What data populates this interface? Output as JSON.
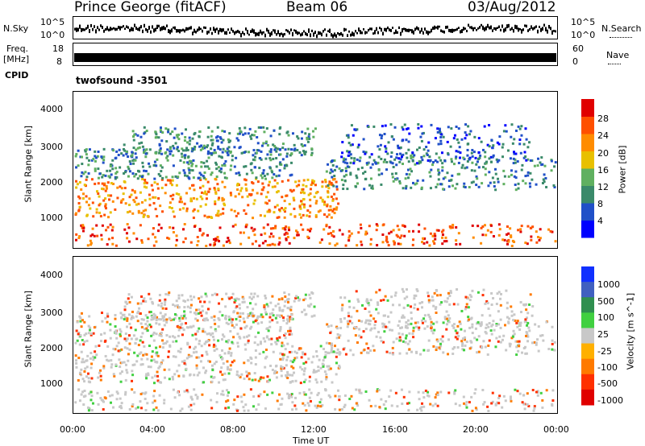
{
  "header": {
    "site": "Prince George (fitACF)",
    "beam": "Beam 06",
    "date": "03/Aug/2012"
  },
  "side_labels": {
    "nsky": "N.Sky",
    "nsearch": "N.Search",
    "freq_line1": "Freq.",
    "freq_line2": "[MHz]",
    "nave": "Nave",
    "cpid": "CPID",
    "cpid_value": "twofsound  -3501"
  },
  "noise_axis": {
    "left_top": "10^5",
    "left_bottom": "10^0",
    "right_top": "10^5",
    "right_bottom": "10^0"
  },
  "freq_axis": {
    "left_top": "18",
    "left_bottom": "8",
    "right_top": "60",
    "right_bottom": "0"
  },
  "colors": {
    "power": [
      "#0000ff",
      "#2050c8",
      "#3a8a6a",
      "#60b060",
      "#e8c000",
      "#ff8c00",
      "#ff5000",
      "#e00000"
    ],
    "velocity": [
      "#1030ff",
      "#4060c0",
      "#2f8f4f",
      "#40d040",
      "#c8c8c8",
      "#ffb000",
      "#ff7a00",
      "#ff3000",
      "#e00000"
    ]
  },
  "chart_data": [
    {
      "type": "heatmap",
      "panel": "power",
      "ylabel": "Slant Range [km]",
      "yticks": [
        "1000",
        "2000",
        "3000",
        "4000"
      ],
      "ylim": [
        200,
        4600
      ],
      "xlim_hours": [
        0,
        24
      ],
      "colorbar_label": "Power [dB]",
      "colorbar_ticks": [
        "4",
        "8",
        "12",
        "16",
        "20",
        "24",
        "28"
      ]
    },
    {
      "type": "heatmap",
      "panel": "velocity",
      "ylabel": "Slant Range [km]",
      "yticks": [
        "1000",
        "2000",
        "3000",
        "4000"
      ],
      "ylim": [
        200,
        4600
      ],
      "xlim_hours": [
        0,
        24
      ],
      "colorbar_label": "Velocity [m s^-1]",
      "colorbar_ticks": [
        "1000",
        "500",
        "100",
        "25",
        "-25",
        "-100",
        "-500",
        "-1000"
      ]
    }
  ],
  "xaxis": {
    "label": "Time UT",
    "ticks": [
      "00:00",
      "04:00",
      "08:00",
      "12:00",
      "16:00",
      "20:00",
      "00:00"
    ]
  }
}
